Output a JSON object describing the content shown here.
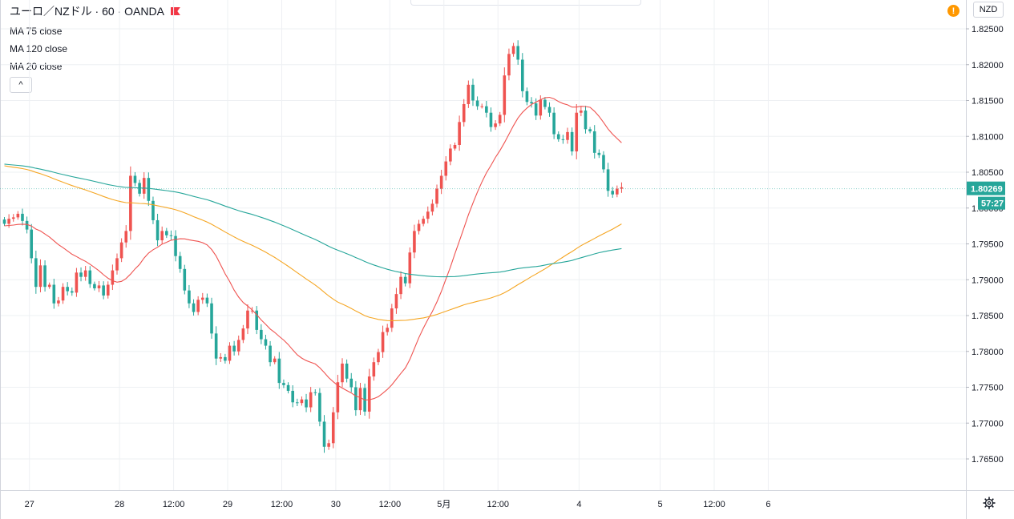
{
  "header": {
    "symbol_title": "ユーロ／NZドル · 60 · OANDA",
    "indicators": [
      "MA 75 close",
      "MA 120 close",
      "MA 20 close"
    ],
    "collapse_label": "^",
    "currency": "NZD",
    "warning_label": "!"
  },
  "colors": {
    "up": "#ef5350",
    "down": "#26a69a",
    "ma20": "#ef5350",
    "ma75": "#f5a623",
    "ma120": "#26a69a",
    "grid": "#eef0f3"
  },
  "chart_data": {
    "type": "candlestick",
    "interval": "60",
    "y_axis": {
      "min": 1.762,
      "max": 1.8265,
      "ticks": [
        "1.82500",
        "1.82000",
        "1.81500",
        "1.81000",
        "1.80500",
        "1.80000",
        "1.79500",
        "1.79000",
        "1.78500",
        "1.78000",
        "1.77500",
        "1.77000",
        "1.76500"
      ]
    },
    "x_axis": {
      "labels": [
        {
          "label": "27",
          "bar": 2
        },
        {
          "label": "28",
          "bar": 22
        },
        {
          "label": "12:00",
          "bar": 34
        },
        {
          "label": "29",
          "bar": 46
        },
        {
          "label": "12:00",
          "bar": 58
        },
        {
          "label": "30",
          "bar": 70
        },
        {
          "label": "12:00",
          "bar": 82
        },
        {
          "label": "5月",
          "bar": 94
        },
        {
          "label": "12:00",
          "bar": 106
        },
        {
          "label": "4",
          "bar": 124
        },
        {
          "label": "5",
          "bar": 142
        },
        {
          "label": "12:00",
          "bar": 154
        },
        {
          "label": "6",
          "bar": 166
        }
      ]
    },
    "last_price": "1.80269",
    "countdown": "57:27",
    "closes": [
      1.7978,
      1.7985,
      1.7987,
      1.7992,
      1.7982,
      1.797,
      1.793,
      1.789,
      1.792,
      1.789,
      1.7893,
      1.7867,
      1.7871,
      1.789,
      1.7884,
      1.7882,
      1.791,
      1.7904,
      1.7913,
      1.7894,
      1.7888,
      1.7892,
      1.7878,
      1.7893,
      1.7913,
      1.793,
      1.7952,
      1.7968,
      1.8045,
      1.8035,
      1.802,
      1.8042,
      1.801,
      1.7983,
      1.7955,
      1.7968,
      1.7962,
      1.7961,
      1.7933,
      1.7915,
      1.7885,
      1.7867,
      1.7855,
      1.7872,
      1.7875,
      1.7867,
      1.7825,
      1.779,
      1.7792,
      1.7787,
      1.7808,
      1.78,
      1.7816,
      1.7832,
      1.7857,
      1.7857,
      1.783,
      1.7817,
      1.7808,
      1.7785,
      1.779,
      1.7756,
      1.7753,
      1.7745,
      1.7729,
      1.7728,
      1.7733,
      1.7722,
      1.7743,
      1.7742,
      1.7702,
      1.7667,
      1.7672,
      1.7715,
      1.7757,
      1.7783,
      1.7762,
      1.775,
      1.7718,
      1.7749,
      1.7716,
      1.7765,
      1.7785,
      1.7799,
      1.7827,
      1.7833,
      1.786,
      1.788,
      1.7904,
      1.7895,
      1.7938,
      1.7968,
      1.7978,
      1.7985,
      1.7995,
      1.8006,
      1.8027,
      1.8045,
      1.8065,
      1.8083,
      1.8088,
      1.812,
      1.8145,
      1.8172,
      1.815,
      1.8142,
      1.8142,
      1.8133,
      1.8113,
      1.8118,
      1.813,
      1.8185,
      1.8215,
      1.8226,
      1.8207,
      1.8163,
      1.8148,
      1.8146,
      1.8129,
      1.8151,
      1.8141,
      1.8133,
      1.8103,
      1.8096,
      1.8095,
      1.8106,
      1.8079,
      1.8133,
      1.8136,
      1.811,
      1.8107,
      1.8077,
      1.8074,
      1.8054,
      1.8024,
      1.8019,
      1.8027,
      1.8029
    ]
  }
}
